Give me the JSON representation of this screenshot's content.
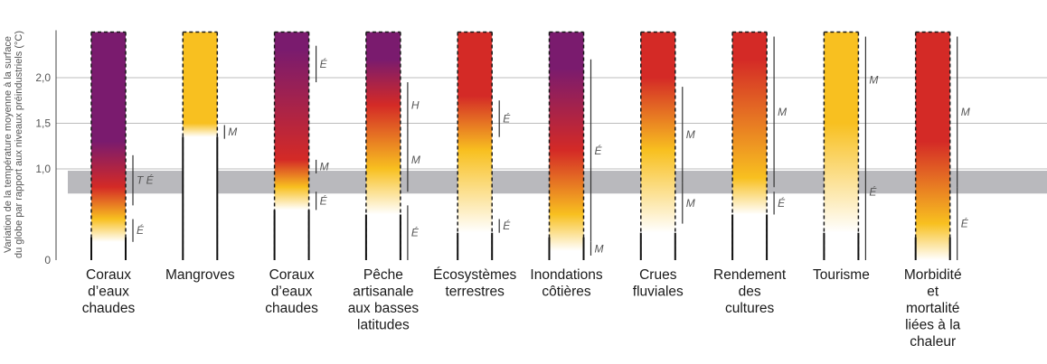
{
  "chart_data": {
    "type": "bar",
    "ylabel_lines": [
      "Variation de la température moyenne à la surface",
      "du globe par rapport aux niveaux préindustriels (°C)"
    ],
    "yticks": [
      {
        "value": 0,
        "label": "0"
      },
      {
        "value": 1.0,
        "label": "1,0"
      },
      {
        "value": 1.5,
        "label": "1,5"
      },
      {
        "value": 2.0,
        "label": "2,0"
      }
    ],
    "ylim": [
      0,
      2.5
    ],
    "current_warming_band": [
      0.73,
      0.98
    ],
    "colors": {
      "undetectable": "#ffffff",
      "moderate": "#f8c020",
      "high": "#d42a26",
      "very_high": "#7a1b6e",
      "band": "#b9b9bd",
      "grid": "#bdbdbd",
      "axis": "#444444"
    },
    "categories": [
      {
        "label": [
          "Coraux",
          "d’eaux",
          "chaudes"
        ],
        "levels": {
          "undetectable": 0.2,
          "moderate": 0.45,
          "high": 0.8,
          "very_high": 1.3
        },
        "confidence": [
          {
            "from": 1.15,
            "to": 0.6,
            "label": "T É"
          },
          {
            "from": 0.45,
            "to": 0.2,
            "label": "É"
          }
        ]
      },
      {
        "label": [
          "Mangroves"
        ],
        "levels": {
          "undetectable": 1.35,
          "moderate": 1.5,
          "high": null,
          "very_high": null
        },
        "confidence": [
          {
            "from": 1.48,
            "to": 1.33,
            "label": "M"
          }
        ]
      },
      {
        "label": [
          "Coraux",
          "d’eaux",
          "chaudes"
        ],
        "levels": {
          "undetectable": 0.55,
          "moderate": 0.8,
          "high": 1.1,
          "very_high": 2.3
        },
        "confidence": [
          {
            "from": 2.35,
            "to": 1.95,
            "label": "É"
          },
          {
            "from": 1.1,
            "to": 0.95,
            "label": "M"
          },
          {
            "from": 0.75,
            "to": 0.55,
            "label": "É"
          }
        ]
      },
      {
        "label": [
          "Pêche",
          "artisanale",
          "aux basses",
          "latitudes"
        ],
        "levels": {
          "undetectable": 0.5,
          "moderate": 1.0,
          "high": 1.7,
          "very_high": 2.2
        },
        "confidence": [
          {
            "from": 1.95,
            "to": 1.45,
            "label": "H"
          },
          {
            "from": 1.45,
            "to": 0.75,
            "label": "M"
          },
          {
            "from": 0.6,
            "to": 0.0,
            "label": "É"
          }
        ]
      },
      {
        "label": [
          "Écosystèmes",
          "terrestres"
        ],
        "levels": {
          "undetectable": 0.3,
          "moderate": 1.2,
          "high": 1.8,
          "very_high": null
        },
        "confidence": [
          {
            "from": 1.75,
            "to": 1.35,
            "label": "É"
          },
          {
            "from": 0.45,
            "to": 0.3,
            "label": "É"
          }
        ]
      },
      {
        "label": [
          "Inondations",
          "côtières"
        ],
        "levels": {
          "undetectable": 0.1,
          "moderate": 0.5,
          "high": 1.2,
          "very_high": 2.1
        },
        "confidence": [
          {
            "from": 2.2,
            "to": 0.2,
            "label": "É"
          },
          {
            "from": 0.2,
            "to": 0.05,
            "label": "M"
          }
        ]
      },
      {
        "label": [
          "Crues",
          "fluviales"
        ],
        "levels": {
          "undetectable": 0.3,
          "moderate": 1.2,
          "high": 2.0,
          "very_high": null
        },
        "confidence": [
          {
            "from": 1.9,
            "to": 0.85,
            "label": "M"
          },
          {
            "from": 0.85,
            "to": 0.4,
            "label": "M"
          }
        ]
      },
      {
        "label": [
          "Rendement",
          "des",
          "cultures"
        ],
        "levels": {
          "undetectable": 0.5,
          "moderate": 0.9,
          "high": 2.2,
          "very_high": null
        },
        "confidence": [
          {
            "from": 2.45,
            "to": 0.8,
            "label": "M"
          },
          {
            "from": 0.75,
            "to": 0.5,
            "label": "É"
          }
        ]
      },
      {
        "label": [
          "Tourisme"
        ],
        "levels": {
          "undetectable": 0.3,
          "moderate": 1.5,
          "high": null,
          "very_high": null
        },
        "confidence": [
          {
            "from": 2.45,
            "to": 1.5,
            "label": "M"
          },
          {
            "from": 1.5,
            "to": 0.0,
            "label": "É"
          }
        ]
      },
      {
        "label": [
          "Morbidité",
          "et",
          "mortalité",
          "liées à la",
          "chaleur"
        ],
        "levels": {
          "undetectable": 0.0,
          "moderate": 0.4,
          "high": 1.3,
          "very_high": null
        },
        "confidence": [
          {
            "from": 2.45,
            "to": 0.8,
            "label": "M"
          },
          {
            "from": 0.8,
            "to": 0.0,
            "label": "É"
          }
        ]
      }
    ]
  }
}
